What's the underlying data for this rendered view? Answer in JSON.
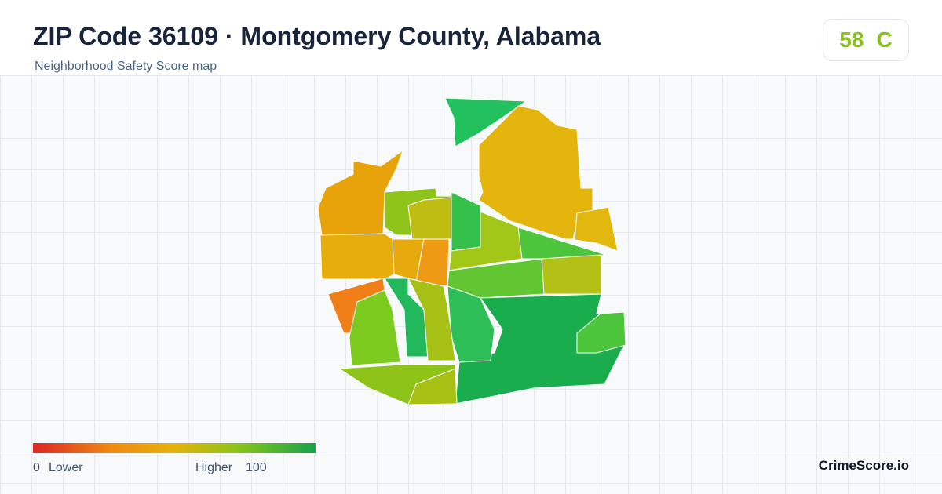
{
  "header": {
    "title": "ZIP Code 36109 · Montgomery County, Alabama",
    "subtitle": "Neighborhood Safety Score map"
  },
  "score": {
    "value": 58,
    "grade": "C"
  },
  "legend": {
    "min": 0,
    "min_label": "Lower",
    "max_label": "Higher",
    "max": 100
  },
  "brand": "CrimeScore.io"
}
